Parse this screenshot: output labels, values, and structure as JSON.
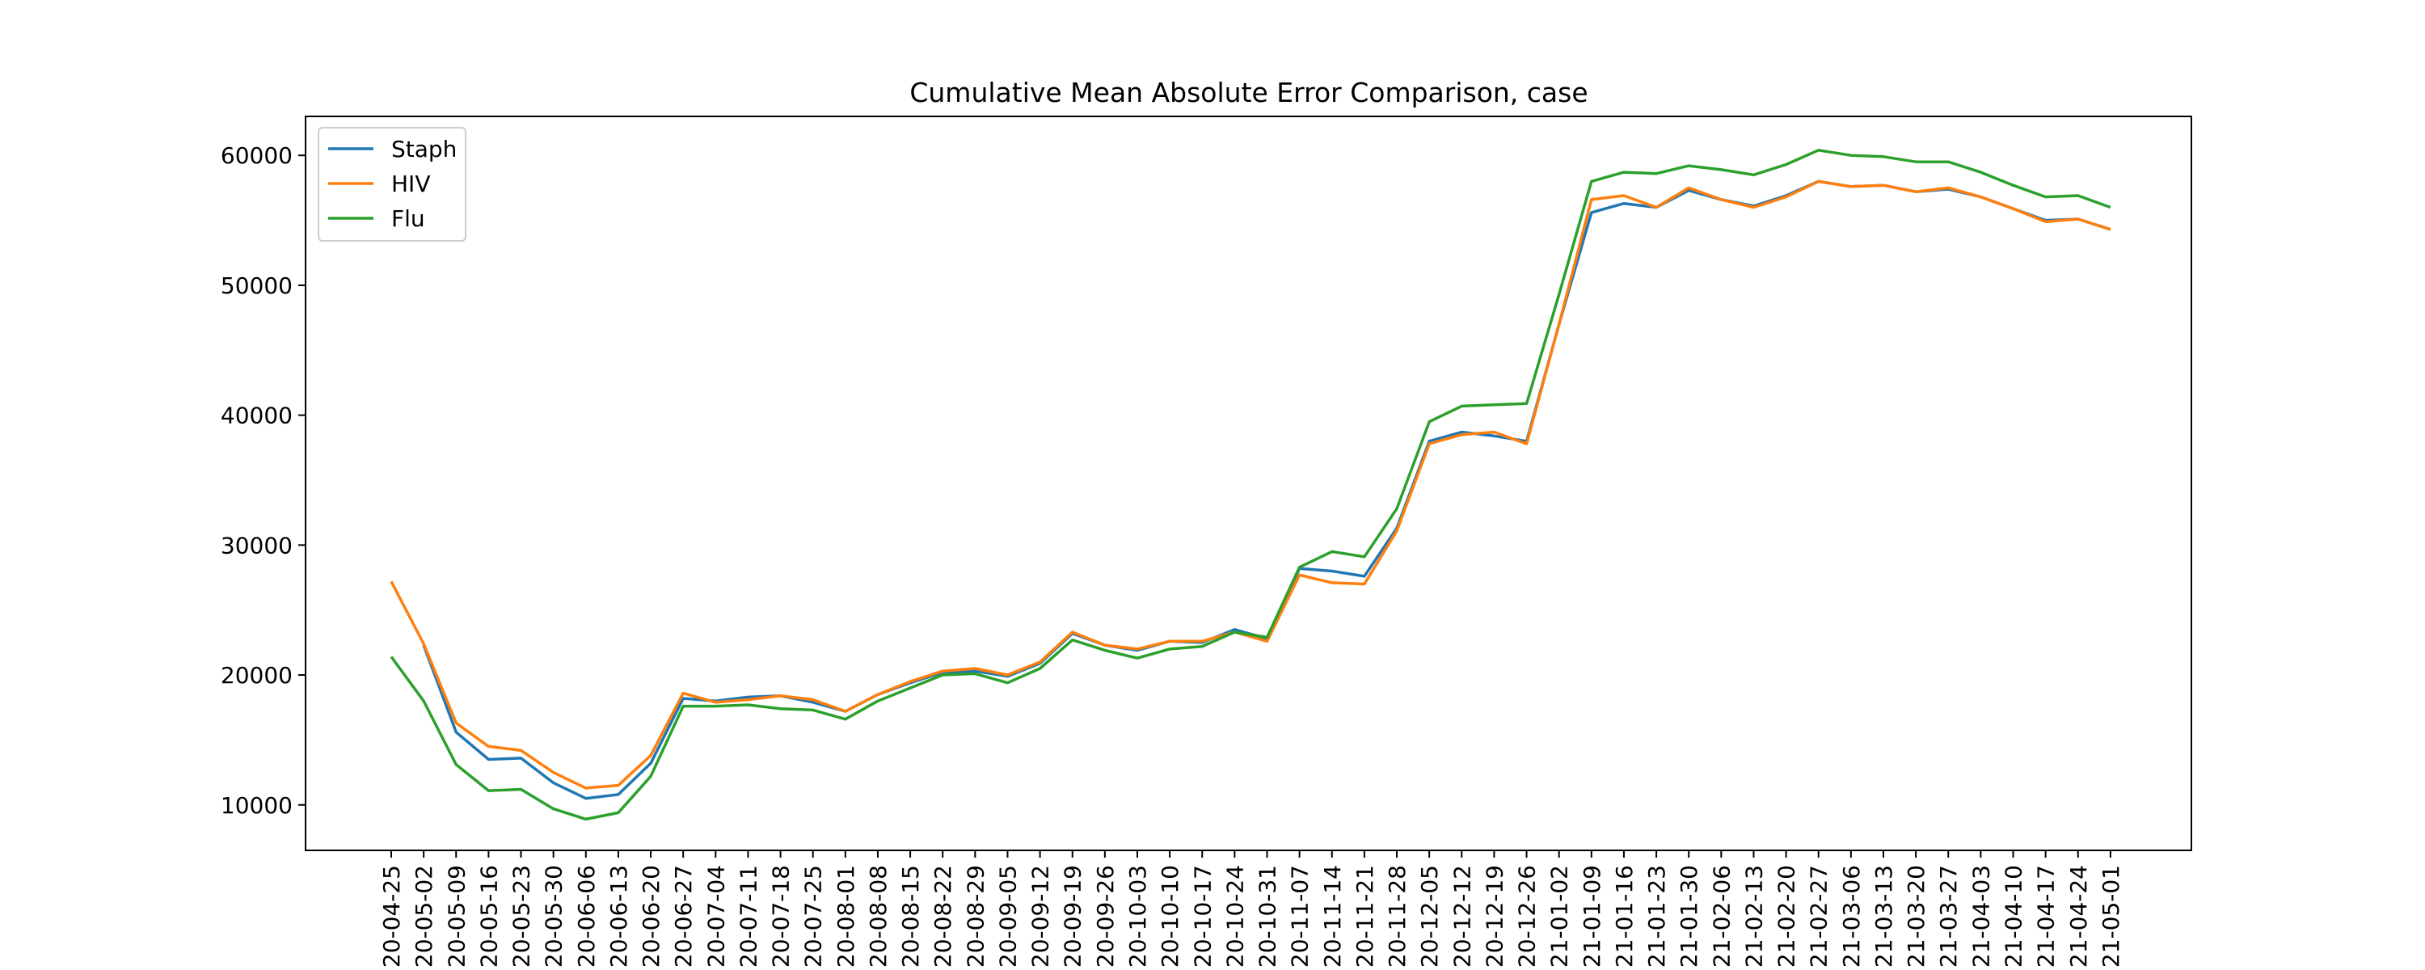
{
  "chart_data": {
    "type": "line",
    "title": "Cumulative Mean Absolute Error Comparison, case",
    "xlabel": "",
    "ylabel": "",
    "ylim": [
      6500,
      63000
    ],
    "yticks": [
      10000,
      20000,
      30000,
      40000,
      50000,
      60000
    ],
    "ytick_labels": [
      "10000",
      "20000",
      "30000",
      "40000",
      "50000",
      "60000"
    ],
    "grid": false,
    "legend_position": "top-left",
    "categories": [
      "20-04-25",
      "20-05-02",
      "20-05-09",
      "20-05-16",
      "20-05-23",
      "20-05-30",
      "20-06-06",
      "20-06-13",
      "20-06-20",
      "20-06-27",
      "20-07-04",
      "20-07-11",
      "20-07-18",
      "20-07-25",
      "20-08-01",
      "20-08-08",
      "20-08-15",
      "20-08-22",
      "20-08-29",
      "20-09-05",
      "20-09-12",
      "20-09-19",
      "20-09-26",
      "20-10-03",
      "20-10-10",
      "20-10-17",
      "20-10-24",
      "20-10-31",
      "20-11-07",
      "20-11-14",
      "20-11-21",
      "20-11-28",
      "20-12-05",
      "20-12-12",
      "20-12-19",
      "20-12-26",
      "21-01-02",
      "21-01-09",
      "21-01-16",
      "21-01-23",
      "21-01-30",
      "21-02-06",
      "21-02-13",
      "21-02-20",
      "21-02-27",
      "21-03-06",
      "21-03-13",
      "21-03-20",
      "21-03-27",
      "21-04-03",
      "21-04-10",
      "21-04-17",
      "21-04-24",
      "21-05-01"
    ],
    "series": [
      {
        "name": "Staph",
        "color": "#1f77b4",
        "values": [
          null,
          22300,
          15600,
          13500,
          13600,
          11700,
          10500,
          10800,
          13200,
          18200,
          18000,
          18300,
          18400,
          17900,
          17200,
          18500,
          19400,
          20200,
          20300,
          19900,
          20900,
          23200,
          22300,
          21900,
          22600,
          22500,
          23500,
          22800,
          28200,
          28000,
          27600,
          31300,
          38000,
          38700,
          38400,
          38000,
          47000,
          55600,
          56300,
          56000,
          57300,
          56600,
          56100,
          56900,
          58000,
          57600,
          57700,
          57200,
          57400,
          56800,
          55900,
          55000,
          55100,
          54300
        ]
      },
      {
        "name": "HIV",
        "color": "#ff7f0e",
        "values": [
          27200,
          22400,
          16300,
          14500,
          14200,
          12500,
          11300,
          11500,
          13800,
          18600,
          17900,
          18100,
          18400,
          18100,
          17200,
          18500,
          19500,
          20300,
          20500,
          20000,
          21000,
          23300,
          22300,
          22000,
          22600,
          22600,
          23300,
          22600,
          27700,
          27100,
          27000,
          31100,
          37800,
          38500,
          38700,
          37800,
          47000,
          56600,
          56900,
          56000,
          57500,
          56600,
          56000,
          56800,
          58000,
          57600,
          57700,
          57200,
          57500,
          56800,
          55900,
          54900,
          55100,
          54300
        ]
      },
      {
        "name": "Flu",
        "color": "#2ca02c",
        "values": [
          21400,
          18000,
          13100,
          11100,
          11200,
          9700,
          8900,
          9400,
          12200,
          17600,
          17600,
          17700,
          17400,
          17300,
          16600,
          18000,
          19000,
          20000,
          20100,
          19400,
          20500,
          22700,
          21900,
          21300,
          22000,
          22200,
          23300,
          22900,
          28300,
          29500,
          29100,
          32800,
          39500,
          40700,
          40800,
          40900,
          49300,
          58000,
          58700,
          58600,
          59200,
          58900,
          58500,
          59300,
          60400,
          60000,
          59900,
          59500,
          59500,
          58700,
          57700,
          56800,
          56900,
          56000
        ]
      }
    ]
  }
}
